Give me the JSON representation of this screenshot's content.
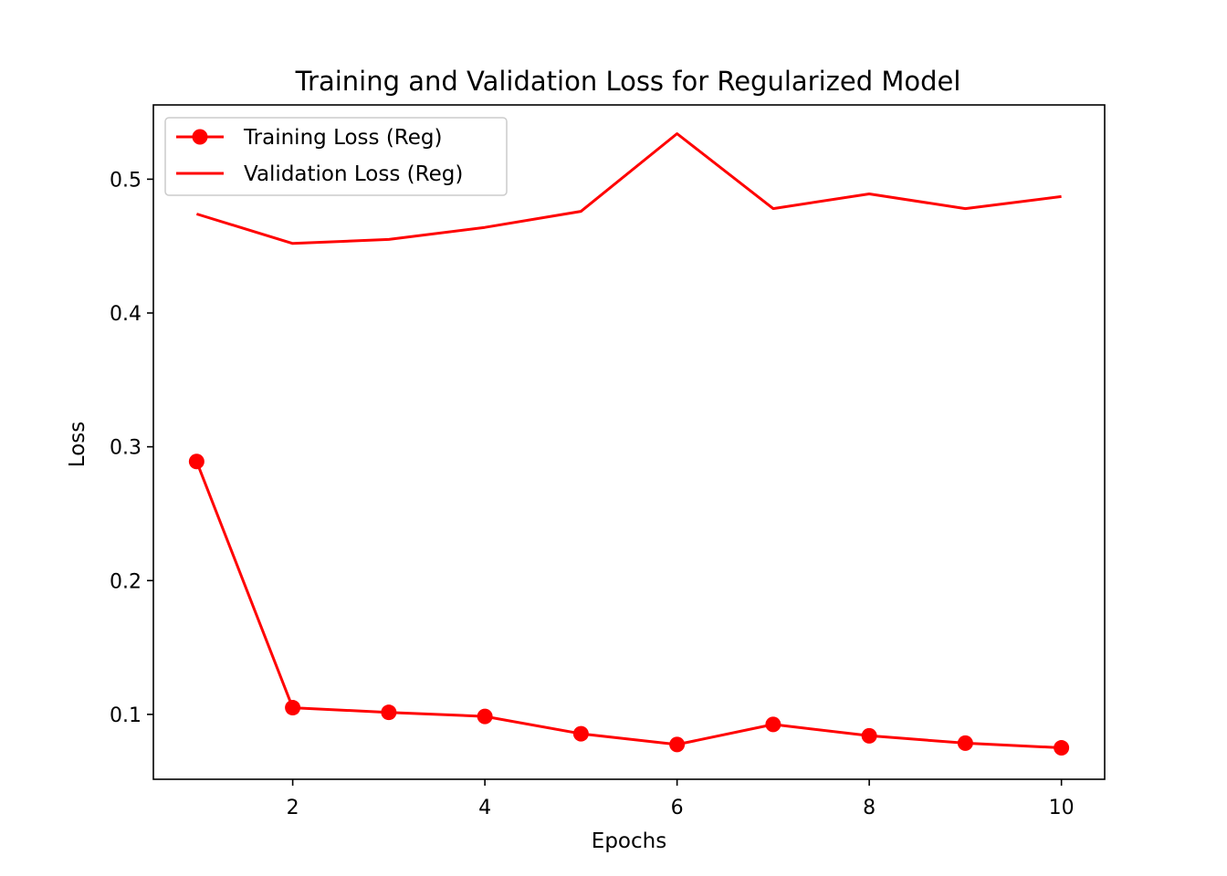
{
  "chart_data": {
    "type": "line",
    "title": "Training and Validation Loss for Regularized Model",
    "xlabel": "Epochs",
    "ylabel": "Loss",
    "x": [
      1,
      2,
      3,
      4,
      5,
      6,
      7,
      8,
      9,
      10
    ],
    "xlim": [
      0.55,
      10.45
    ],
    "ylim": [
      0.0515,
      0.5555
    ],
    "xticks": [
      2,
      4,
      6,
      8,
      10
    ],
    "xtick_labels": [
      "2",
      "4",
      "6",
      "8",
      "10"
    ],
    "yticks": [
      0.1,
      0.2,
      0.3,
      0.4,
      0.5
    ],
    "ytick_labels": [
      "0.1",
      "0.2",
      "0.3",
      "0.4",
      "0.5"
    ],
    "grid": false,
    "legend_position": "top-left",
    "series": [
      {
        "name": "Training Loss (Reg)",
        "color": "#ff0000",
        "marker": "circle",
        "values": [
          0.289,
          0.105,
          0.1015,
          0.0985,
          0.0855,
          0.0775,
          0.0925,
          0.084,
          0.0785,
          0.075
        ]
      },
      {
        "name": "Validation Loss (Reg)",
        "color": "#ff0000",
        "marker": "none",
        "values": [
          0.474,
          0.452,
          0.455,
          0.464,
          0.476,
          0.534,
          0.478,
          0.489,
          0.478,
          0.487
        ]
      }
    ]
  }
}
